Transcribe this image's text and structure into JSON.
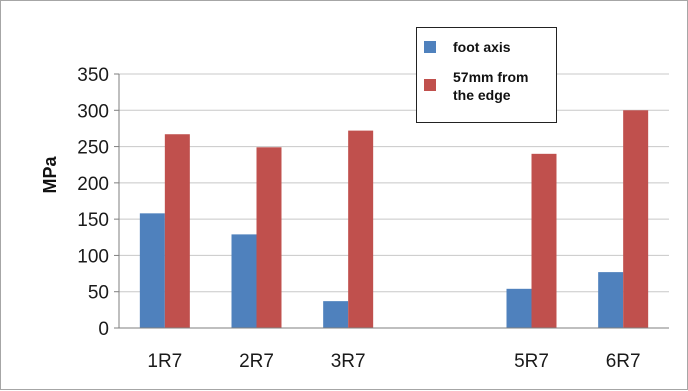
{
  "chart_data": {
    "type": "bar",
    "title": "",
    "xlabel": "",
    "ylabel": "MPa",
    "ylim": [
      0,
      350
    ],
    "yticks": [
      0,
      50,
      100,
      150,
      200,
      250,
      300,
      350
    ],
    "grid": true,
    "legend_position": "top-right",
    "categories": [
      "1R7",
      "2R7",
      "3R7",
      "",
      "5R7",
      "6R7"
    ],
    "series": [
      {
        "name": "foot axis",
        "color": "#4f81bd",
        "values": [
          158,
          129,
          37,
          null,
          54,
          77
        ]
      },
      {
        "name": "57mm from the edge",
        "color": "#c0504d",
        "values": [
          267,
          249,
          272,
          null,
          240,
          300
        ]
      }
    ]
  },
  "legend": {
    "items": [
      {
        "label": "foot axis",
        "color": "#4f81bd"
      },
      {
        "label": "57mm from\nthe edge",
        "color": "#c0504d"
      }
    ]
  }
}
